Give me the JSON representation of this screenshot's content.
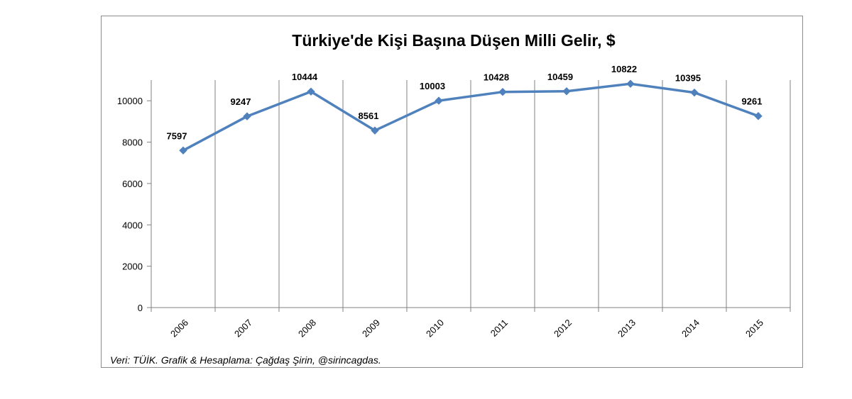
{
  "chart_data": {
    "type": "line",
    "title": "Türkiye'de Kişi Başına Düşen Milli Gelir, $",
    "xlabel": "",
    "ylabel": "",
    "categories": [
      "2006",
      "2007",
      "2008",
      "2009",
      "2010",
      "2011",
      "2012",
      "2013",
      "2014",
      "2015"
    ],
    "series": [
      {
        "values": [
          7597,
          9247,
          10444,
          8561,
          10003,
          10428,
          10459,
          10822,
          10395,
          9261
        ],
        "color": "#4F81BD",
        "marker": "diamond"
      }
    ],
    "ylim": [
      0,
      11000
    ],
    "y_ticks": [
      "0",
      "2000",
      "4000",
      "6000",
      "8000",
      "10000"
    ],
    "grid": "vertical",
    "grid_color": "#808080",
    "data_labels": true,
    "legend": "none"
  },
  "footnote": "Veri: TÜİK. Grafik & Hesaplama: Çağdaş Şirin, @sirincagdas."
}
